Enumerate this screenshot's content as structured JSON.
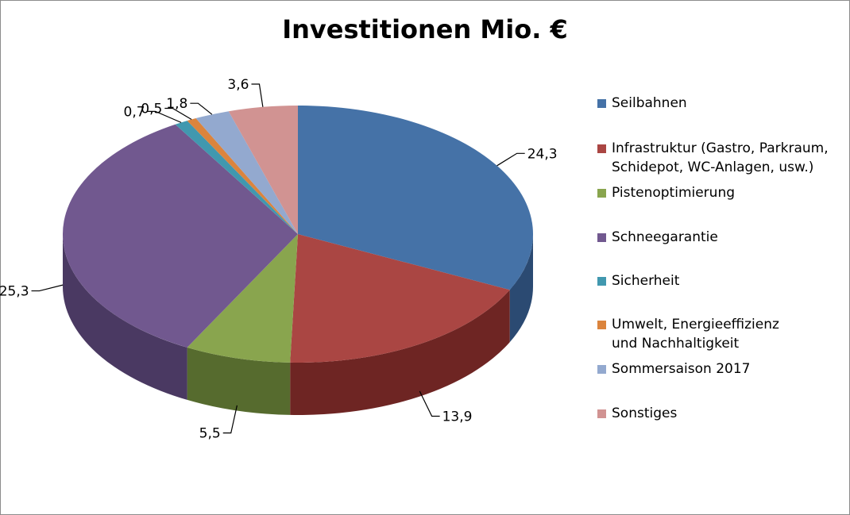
{
  "chart_data": {
    "type": "pie",
    "title": "Investitionen Mio. €",
    "three_d": true,
    "legend_position": "right",
    "slices": [
      {
        "label": "Seilbahnen",
        "value": 24.3,
        "display": "24,3",
        "color": "#4572a7",
        "side": "#2b4a72"
      },
      {
        "label": "Infrastruktur (Gastro, Parkraum,\nSchidepot, WC-Anlagen, usw.)",
        "value": 13.9,
        "display": "13,9",
        "color": "#aa4643",
        "side": "#6e2523"
      },
      {
        "label": "Pistenoptimierung",
        "value": 5.5,
        "display": "5,5",
        "color": "#89a54e",
        "side": "#566b2e"
      },
      {
        "label": "Schneegarantie",
        "value": 25.3,
        "display": "25,3",
        "color": "#71588f",
        "side": "#4a3962"
      },
      {
        "label": "Sicherheit",
        "value": 0.7,
        "display": "0,7",
        "color": "#4198af",
        "side": "#2a6474"
      },
      {
        "label": "Umwelt, Energieeffizienz\nund Nachhaltigkeit",
        "value": 0.5,
        "display": "0,5",
        "color": "#db843d",
        "side": "#955420"
      },
      {
        "label": "Sommersaison 2017",
        "value": 1.8,
        "display": "1,8",
        "color": "#93a9cf",
        "side": "#5f7499"
      },
      {
        "label": "Sonstiges",
        "value": 3.6,
        "display": "3,6",
        "color": "#d19392",
        "side": "#9a5f5e"
      }
    ]
  }
}
